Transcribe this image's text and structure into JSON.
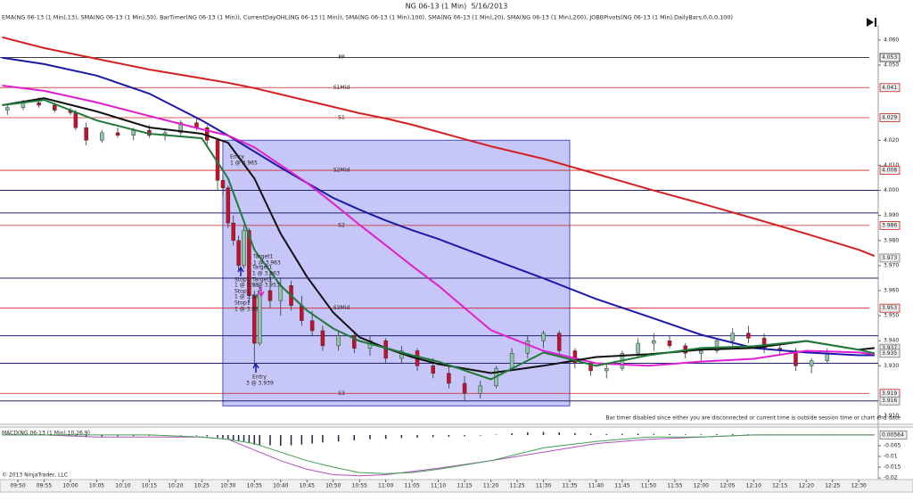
{
  "chart_data": {
    "type": "candlestick",
    "title": "NG 06-13 (1 Min)  5/16/2013",
    "subtitle": "EMA(NG 06-13 (1 Min),13), SMA(NG 06-13 (1 Min),50), BarTimer(NG 06-13 (1 Min)), CurrentDayOHL(NG 06-13 (1 Min)), SMA(NG 06-13 (1 Min),100), SMA(NG 06-13 (1 Min),20), SMA(NG 06-13 (1 Min),200), JOBBPivots(NG 06-13 (1 Min),DailyBars,0,0,0,100)",
    "xlim": [
      586.6,
      753.7
    ],
    "xticks": [
      {
        "value": 590,
        "label": "09:50"
      },
      {
        "value": 595,
        "label": "09:55"
      },
      {
        "value": 600,
        "label": "10:00"
      },
      {
        "value": 605,
        "label": "10:05"
      },
      {
        "value": 610,
        "label": "10:10"
      },
      {
        "value": 615,
        "label": "10:15"
      },
      {
        "value": 620,
        "label": "10:20"
      },
      {
        "value": 625,
        "label": "10:25"
      },
      {
        "value": 630,
        "label": "10:30"
      },
      {
        "value": 635,
        "label": "10:35"
      },
      {
        "value": 640,
        "label": "10:40"
      },
      {
        "value": 645,
        "label": "10:45"
      },
      {
        "value": 650,
        "label": "10:50"
      },
      {
        "value": 655,
        "label": "10:55"
      },
      {
        "value": 660,
        "label": "11:00"
      },
      {
        "value": 665,
        "label": "11:05"
      },
      {
        "value": 670,
        "label": "11:10"
      },
      {
        "value": 675,
        "label": "11:15"
      },
      {
        "value": 680,
        "label": "11:20"
      },
      {
        "value": 685,
        "label": "11:25"
      },
      {
        "value": 690,
        "label": "11:30"
      },
      {
        "value": 695,
        "label": "11:35"
      },
      {
        "value": 700,
        "label": "11:40"
      },
      {
        "value": 705,
        "label": "11:45"
      },
      {
        "value": 710,
        "label": "11:50"
      },
      {
        "value": 715,
        "label": "11:55"
      },
      {
        "value": 720,
        "label": "12:00"
      },
      {
        "value": 725,
        "label": "12:05"
      },
      {
        "value": 730,
        "label": "12:10"
      },
      {
        "value": 735,
        "label": "12:15"
      },
      {
        "value": 740,
        "label": "12:20"
      },
      {
        "value": 745,
        "label": "12:25"
      },
      {
        "value": 750,
        "label": "12:30"
      }
    ],
    "ylim": [
      3.907,
      4.066
    ],
    "yticks": [
      {
        "value": 4.06,
        "label": "4.060"
      },
      {
        "value": 4.05,
        "label": "4.050"
      },
      {
        "value": 4.02,
        "label": "4.020"
      },
      {
        "value": 4.01,
        "label": "4.010"
      },
      {
        "value": 4.0,
        "label": "4.000"
      },
      {
        "value": 3.99,
        "label": "3.990"
      },
      {
        "value": 3.98,
        "label": "3.980"
      },
      {
        "value": 3.97,
        "label": "3.970"
      },
      {
        "value": 3.96,
        "label": "3.960"
      },
      {
        "value": 3.95,
        "label": "3.950"
      },
      {
        "value": 3.94,
        "label": "3.940"
      },
      {
        "value": 3.93,
        "label": "3.930"
      },
      {
        "value": 3.91,
        "label": "3.910"
      }
    ],
    "up_color": "#8cc7a6",
    "down_color": "#c8102e",
    "candles": {
      "x": [
        588,
        591,
        594,
        597,
        600,
        601,
        603,
        606,
        609,
        612,
        615,
        618,
        621,
        624,
        626,
        628,
        629,
        630,
        631,
        632,
        633,
        634,
        635,
        636,
        638,
        640,
        642,
        644,
        646,
        648,
        651,
        654,
        657,
        660,
        663,
        666,
        669,
        672,
        675,
        678,
        681,
        684,
        687,
        690,
        693,
        696,
        699,
        702,
        705,
        708,
        711,
        714,
        717,
        720,
        723,
        726,
        729,
        732,
        735,
        738,
        741,
        744
      ],
      "open": [
        4.032,
        4.033,
        4.035,
        4.034,
        4.032,
        4.031,
        4.025,
        4.02,
        4.023,
        4.022,
        4.024,
        4.022,
        4.023,
        4.027,
        4.025,
        4.02,
        4.004,
        4.001,
        3.987,
        3.98,
        3.97,
        3.984,
        3.958,
        3.939,
        3.96,
        3.956,
        3.962,
        3.954,
        3.948,
        3.944,
        3.938,
        3.942,
        3.937,
        3.94,
        3.933,
        3.936,
        3.93,
        3.927,
        3.923,
        3.919,
        3.922,
        3.929,
        3.935,
        3.94,
        3.943,
        3.936,
        3.931,
        3.928,
        3.929,
        3.935,
        3.939,
        3.94,
        3.938,
        3.935,
        3.936,
        3.94,
        3.943,
        3.941,
        3.937,
        3.936,
        3.93,
        3.932
      ],
      "high": [
        4.034,
        4.036,
        4.037,
        4.035,
        4.033,
        4.032,
        4.027,
        4.024,
        4.025,
        4.025,
        4.026,
        4.024,
        4.028,
        4.029,
        4.026,
        4.021,
        4.006,
        4.002,
        3.99,
        3.982,
        3.986,
        3.985,
        3.96,
        3.962,
        3.967,
        3.965,
        3.964,
        3.958,
        3.952,
        3.946,
        3.944,
        3.944,
        3.942,
        3.941,
        3.938,
        3.937,
        3.933,
        3.93,
        3.926,
        3.924,
        3.93,
        3.937,
        3.942,
        3.944,
        3.944,
        3.937,
        3.932,
        3.931,
        3.936,
        3.941,
        3.943,
        3.942,
        3.939,
        3.937,
        3.941,
        3.945,
        3.946,
        3.943,
        3.939,
        3.937,
        3.933,
        3.937
      ],
      "low": [
        4.03,
        4.032,
        4.033,
        4.031,
        4.03,
        4.024,
        4.018,
        4.019,
        4.021,
        4.02,
        4.021,
        4.02,
        4.022,
        4.024,
        4.018,
        4.0,
        3.998,
        3.985,
        3.978,
        3.968,
        3.969,
        3.955,
        3.93,
        3.938,
        3.953,
        3.95,
        3.952,
        3.946,
        3.942,
        3.936,
        3.936,
        3.935,
        3.934,
        3.931,
        3.931,
        3.928,
        3.925,
        3.921,
        3.916,
        3.917,
        3.921,
        3.928,
        3.933,
        3.937,
        3.934,
        3.929,
        3.926,
        3.925,
        3.928,
        3.933,
        3.936,
        3.937,
        3.933,
        3.932,
        3.935,
        3.938,
        3.939,
        3.935,
        3.934,
        3.928,
        3.927,
        3.931
      ],
      "close": [
        4.033,
        4.035,
        4.034,
        4.032,
        4.031,
        4.025,
        4.02,
        4.023,
        4.022,
        4.024,
        4.022,
        4.023,
        4.027,
        4.025,
        4.02,
        4.004,
        4.001,
        3.987,
        3.98,
        3.97,
        3.984,
        3.958,
        3.939,
        3.96,
        3.956,
        3.962,
        3.954,
        3.948,
        3.944,
        3.938,
        3.942,
        3.937,
        3.94,
        3.933,
        3.936,
        3.93,
        3.927,
        3.923,
        3.919,
        3.922,
        3.929,
        3.935,
        3.94,
        3.943,
        3.936,
        3.931,
        3.928,
        3.929,
        3.935,
        3.939,
        3.94,
        3.938,
        3.935,
        3.936,
        3.94,
        3.943,
        3.941,
        3.937,
        3.936,
        3.93,
        3.932,
        3.935
      ]
    },
    "x": [
      587,
      595,
      605,
      615,
      625,
      630,
      635,
      640,
      645,
      650,
      655,
      660,
      665,
      670,
      680,
      690,
      700,
      710,
      720,
      730,
      740,
      750,
      753
    ],
    "series": [
      {
        "color": "#d42020",
        "values": [
          4.0611,
          4.0568,
          4.0525,
          4.0482,
          4.0447,
          4.0429,
          4.0408,
          4.0383,
          4.0358,
          4.0333,
          4.0308,
          4.0287,
          4.0262,
          4.0233,
          4.0176,
          4.0126,
          4.0066,
          4.0005,
          3.9948,
          3.9888,
          3.9827,
          3.9763,
          3.9738
        ]
      },
      {
        "color": "#1a1aa8",
        "values": [
          4.0529,
          4.0504,
          4.0458,
          4.0386,
          4.0279,
          4.0219,
          4.0155,
          4.0091,
          4.003,
          3.997,
          3.9923,
          3.988,
          3.9841,
          3.9806,
          3.9727,
          3.9649,
          3.9567,
          3.9496,
          3.9424,
          3.9371,
          3.9353,
          3.9342,
          3.9342
        ]
      },
      {
        "color": "#e020d0",
        "values": [
          4.0418,
          4.0397,
          4.0351,
          4.0297,
          4.0244,
          4.0219,
          4.0172,
          4.0101,
          4.003,
          3.9948,
          3.9863,
          3.9781,
          3.9699,
          3.962,
          3.9442,
          3.936,
          3.931,
          3.93,
          3.9317,
          3.9328,
          3.936,
          3.9353,
          3.9346
        ]
      },
      {
        "color": "#111111",
        "values": [
          4.034,
          4.0368,
          4.0315,
          4.0251,
          4.0226,
          4.019,
          4.0048,
          3.9827,
          3.9656,
          3.9513,
          3.9414,
          3.9371,
          3.9335,
          3.9307,
          3.9271,
          3.93,
          3.9335,
          3.9346,
          3.9364,
          3.9371,
          3.9399,
          3.9364,
          3.9371
        ]
      },
      {
        "color": "#1f7a3a",
        "values": [
          4.034,
          4.0361,
          4.0279,
          4.0226,
          4.0208,
          4.0048,
          3.9763,
          3.962,
          3.9521,
          3.9449,
          3.9399,
          3.9371,
          3.9342,
          3.9317,
          3.9246,
          3.9353,
          3.93,
          3.9342,
          3.9371,
          3.9378,
          3.9399,
          3.9364,
          3.935
        ]
      }
    ],
    "pivots": [
      {
        "name": "PP",
        "value": 4.053,
        "color": "#222222"
      },
      {
        "name": "S1Mid",
        "value": 4.041,
        "color": "#cc2222"
      },
      {
        "name": "S1",
        "value": 4.029,
        "color": "#cc2222"
      },
      {
        "name": "S2Mid",
        "value": 4.008,
        "color": "#cc2222"
      },
      {
        "name": "S2",
        "value": 3.986,
        "color": "#cc2222"
      },
      {
        "name": "S3Mid",
        "value": 3.953,
        "color": "#cc2222"
      },
      {
        "name": "S3",
        "value": 3.919,
        "color": "#cc2222"
      }
    ],
    "levels": [
      4.0,
      3.991,
      3.965,
      3.942,
      3.931,
      3.916
    ],
    "level_color": "#22226e",
    "price_markers": [
      3.973,
      3.937,
      3.935,
      3.916
    ],
    "box": {
      "xlim": [
        629,
        695
      ],
      "ylim": [
        3.914,
        4.02
      ],
      "color": "#8080f0"
    },
    "annotations": [
      "Entry",
      "1 @ 3.965",
      "Target1",
      "1 @ 3.963",
      "Target1",
      "1 @ 3.963",
      "Stop1",
      "1 @ 3.98",
      "Target1",
      "1 @ 3.953",
      "Stop1",
      "1 @ 3.98",
      "Stop1",
      "1 @ 3.98",
      "Entry",
      "3 @ 3.939"
    ],
    "note": "Bar timer disabled since either you are disconnected or current time is outside session time or chart end date",
    "copyright": "© 2013 NinjaTrader, LLC",
    "macd": {
      "label": "MACD(NG 06-13 (1 Min),10,26,9)",
      "ylim": [
        -0.0208,
        0.0033
      ],
      "yticks": [
        -0.005,
        -0.01,
        -0.015,
        -0.02
      ],
      "value_label": 0.00564,
      "histogram": [
        0.0002,
        0.0003,
        0.0002,
        0.0001,
        0,
        -0.0005,
        -0.001,
        -0.0008,
        -0.0006,
        -0.0005,
        -0.0004,
        -0.0002,
        -0.0002,
        -0.0003,
        -0.0006,
        -0.0012,
        -0.0015,
        -0.002,
        -0.0025,
        -0.003,
        -0.003,
        -0.0038,
        -0.0045,
        -0.0047,
        -0.0048,
        -0.005,
        -0.0048,
        -0.0045,
        -0.004,
        -0.0035,
        -0.003,
        -0.0025,
        -0.002,
        -0.0018,
        -0.0014,
        -0.0012,
        -0.001,
        -0.0008,
        -0.0006,
        -0.0003,
        0.0002,
        0.0008,
        0.0012,
        0.0014,
        0.0012,
        0.0009,
        0.0006,
        0.0004,
        0.0005,
        0.0006,
        0.0005,
        0.0004,
        0.0003,
        0.0003,
        0.0004,
        0.0004,
        0.0003,
        0.0002,
        0.0002,
        0.0001,
        0.0001,
        0.0002
      ],
      "histogram_color": "#222244",
      "series": [
        {
          "color": "#b050c0",
          "values": [
            0,
            0,
            -0.001,
            -0.001,
            -0.001,
            -0.002,
            -0.007,
            -0.012,
            -0.016,
            -0.0185,
            -0.019,
            -0.0185,
            -0.017,
            -0.0155,
            -0.012,
            -0.008,
            -0.004,
            -0.002,
            -0.001,
            0,
            0,
            0,
            0
          ]
        },
        {
          "color": "#40a050",
          "values": [
            0,
            0,
            0,
            0,
            -0.001,
            -0.002,
            -0.004,
            -0.008,
            -0.012,
            -0.015,
            -0.0175,
            -0.018,
            -0.0175,
            -0.016,
            -0.012,
            -0.006,
            -0.003,
            -0.001,
            -0.001,
            0,
            0,
            0,
            0
          ]
        }
      ]
    }
  }
}
